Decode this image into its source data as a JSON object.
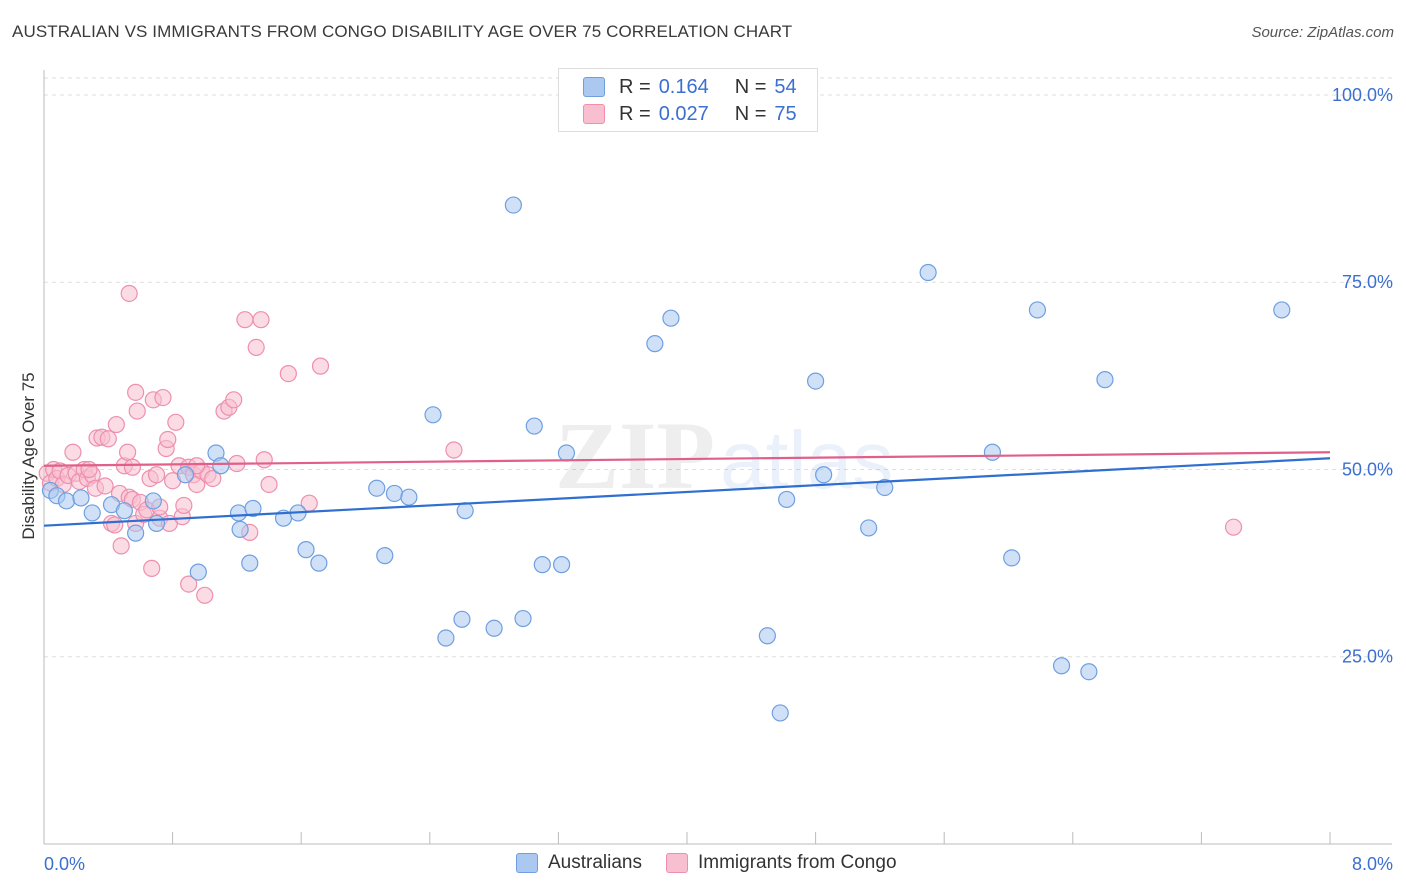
{
  "title": "AUSTRALIAN VS IMMIGRANTS FROM CONGO DISABILITY AGE OVER 75 CORRELATION CHART",
  "source": "Source: ZipAtlas.com",
  "watermark": {
    "zip": "ZIP",
    "atlas": "atlas"
  },
  "legend": {
    "r_label": "R =",
    "n_label": "N =",
    "rows": [
      {
        "r": "0.164",
        "n": "54"
      },
      {
        "r": "0.027",
        "n": "75"
      }
    ]
  },
  "bottom_legend": [
    "Australians",
    "Immigrants from Congo"
  ],
  "colors": {
    "blue_fill": "#aac8f0",
    "blue_stroke": "#6f9fe0",
    "blue_line": "#2f6fd0",
    "pink_fill": "#f8bfd0",
    "pink_stroke": "#ee8fae",
    "pink_line": "#e0608a",
    "axis_text": "#3b6fd0",
    "grid": "#dddddd"
  },
  "chart_data": {
    "type": "scatter",
    "title": "AUSTRALIAN VS IMMIGRANTS FROM CONGO DISABILITY AGE OVER 75 CORRELATION CHART",
    "xlabel": "",
    "ylabel": "Disability Age Over 75",
    "xlim": [
      0,
      8
    ],
    "ylim": [
      0,
      102
    ],
    "x_tick_labels": [
      "0.0%",
      "8.0%"
    ],
    "y_ticks": [
      25,
      50,
      75,
      100
    ],
    "y_tick_labels": [
      "25.0%",
      "50.0%",
      "75.0%",
      "100.0%"
    ],
    "grid": true,
    "series": [
      {
        "name": "Australians",
        "color": "blue",
        "trend": {
          "x": [
            0,
            8
          ],
          "y": [
            42.5,
            51.5
          ]
        },
        "points": [
          {
            "x": 0.04,
            "y": 47.2
          },
          {
            "x": 0.08,
            "y": 46.5
          },
          {
            "x": 0.14,
            "y": 45.8
          },
          {
            "x": 0.23,
            "y": 46.2
          },
          {
            "x": 0.3,
            "y": 44.2
          },
          {
            "x": 0.42,
            "y": 45.3
          },
          {
            "x": 0.5,
            "y": 44.5
          },
          {
            "x": 0.68,
            "y": 45.8
          },
          {
            "x": 0.7,
            "y": 42.8
          },
          {
            "x": 0.57,
            "y": 41.5
          },
          {
            "x": 0.88,
            "y": 49.3
          },
          {
            "x": 1.07,
            "y": 52.2
          },
          {
            "x": 1.1,
            "y": 50.5
          },
          {
            "x": 1.21,
            "y": 44.2
          },
          {
            "x": 1.3,
            "y": 44.8
          },
          {
            "x": 1.22,
            "y": 42.0
          },
          {
            "x": 1.49,
            "y": 43.5
          },
          {
            "x": 1.58,
            "y": 44.2
          },
          {
            "x": 1.28,
            "y": 37.5
          },
          {
            "x": 1.63,
            "y": 39.3
          },
          {
            "x": 1.71,
            "y": 37.5
          },
          {
            "x": 2.07,
            "y": 47.5
          },
          {
            "x": 2.18,
            "y": 46.8
          },
          {
            "x": 2.27,
            "y": 46.3
          },
          {
            "x": 2.12,
            "y": 38.5
          },
          {
            "x": 0.96,
            "y": 36.3
          },
          {
            "x": 2.42,
            "y": 57.3
          },
          {
            "x": 2.92,
            "y": 85.3
          },
          {
            "x": 3.05,
            "y": 55.8
          },
          {
            "x": 3.25,
            "y": 52.2
          },
          {
            "x": 3.1,
            "y": 37.3
          },
          {
            "x": 3.22,
            "y": 37.3
          },
          {
            "x": 2.62,
            "y": 44.5
          },
          {
            "x": 2.6,
            "y": 30.0
          },
          {
            "x": 2.5,
            "y": 27.5
          },
          {
            "x": 2.8,
            "y": 28.8
          },
          {
            "x": 2.98,
            "y": 30.1
          },
          {
            "x": 3.8,
            "y": 66.8
          },
          {
            "x": 3.9,
            "y": 70.2
          },
          {
            "x": 4.5,
            "y": 27.8
          },
          {
            "x": 4.58,
            "y": 17.5
          },
          {
            "x": 4.62,
            "y": 46.0
          },
          {
            "x": 4.8,
            "y": 61.8
          },
          {
            "x": 4.85,
            "y": 49.3
          },
          {
            "x": 5.13,
            "y": 42.2
          },
          {
            "x": 5.23,
            "y": 47.6
          },
          {
            "x": 5.5,
            "y": 76.3
          },
          {
            "x": 5.9,
            "y": 52.3
          },
          {
            "x": 6.02,
            "y": 38.2
          },
          {
            "x": 6.18,
            "y": 71.3
          },
          {
            "x": 6.33,
            "y": 23.8
          },
          {
            "x": 6.5,
            "y": 23.0
          },
          {
            "x": 6.6,
            "y": 62.0
          },
          {
            "x": 7.7,
            "y": 71.3
          }
        ]
      },
      {
        "name": "Immigrants from Congo",
        "color": "pink",
        "trend": {
          "x": [
            0,
            8
          ],
          "y": [
            50.5,
            52.3
          ]
        },
        "points": [
          {
            "x": 0.02,
            "y": 49.5
          },
          {
            "x": 0.04,
            "y": 48.2
          },
          {
            "x": 0.06,
            "y": 50.0
          },
          {
            "x": 0.08,
            "y": 48.8
          },
          {
            "x": 0.1,
            "y": 49.8
          },
          {
            "x": 0.12,
            "y": 48.0
          },
          {
            "x": 0.15,
            "y": 49.2
          },
          {
            "x": 0.18,
            "y": 52.3
          },
          {
            "x": 0.2,
            "y": 49.5
          },
          {
            "x": 0.22,
            "y": 48.4
          },
          {
            "x": 0.25,
            "y": 50.0
          },
          {
            "x": 0.27,
            "y": 48.8
          },
          {
            "x": 0.3,
            "y": 49.3
          },
          {
            "x": 0.32,
            "y": 47.5
          },
          {
            "x": 0.33,
            "y": 54.2
          },
          {
            "x": 0.36,
            "y": 54.3
          },
          {
            "x": 0.38,
            "y": 47.8
          },
          {
            "x": 0.4,
            "y": 54.1
          },
          {
            "x": 0.42,
            "y": 42.8
          },
          {
            "x": 0.44,
            "y": 42.6
          },
          {
            "x": 0.45,
            "y": 56.0
          },
          {
            "x": 0.47,
            "y": 46.8
          },
          {
            "x": 0.48,
            "y": 39.8
          },
          {
            "x": 0.5,
            "y": 50.5
          },
          {
            "x": 0.52,
            "y": 52.3
          },
          {
            "x": 0.53,
            "y": 46.3
          },
          {
            "x": 0.55,
            "y": 46.0
          },
          {
            "x": 0.57,
            "y": 42.8
          },
          {
            "x": 0.53,
            "y": 73.5
          },
          {
            "x": 0.57,
            "y": 60.3
          },
          {
            "x": 0.58,
            "y": 57.8
          },
          {
            "x": 0.6,
            "y": 45.6
          },
          {
            "x": 0.62,
            "y": 44.0
          },
          {
            "x": 0.64,
            "y": 44.6
          },
          {
            "x": 0.66,
            "y": 48.8
          },
          {
            "x": 0.68,
            "y": 59.3
          },
          {
            "x": 0.67,
            "y": 36.8
          },
          {
            "x": 0.7,
            "y": 49.3
          },
          {
            "x": 0.72,
            "y": 43.5
          },
          {
            "x": 0.74,
            "y": 59.6
          },
          {
            "x": 0.76,
            "y": 52.8
          },
          {
            "x": 0.77,
            "y": 54.0
          },
          {
            "x": 0.78,
            "y": 42.8
          },
          {
            "x": 0.8,
            "y": 48.5
          },
          {
            "x": 0.82,
            "y": 56.3
          },
          {
            "x": 0.84,
            "y": 50.5
          },
          {
            "x": 0.86,
            "y": 43.7
          },
          {
            "x": 0.87,
            "y": 45.2
          },
          {
            "x": 0.9,
            "y": 50.3
          },
          {
            "x": 0.9,
            "y": 34.7
          },
          {
            "x": 0.93,
            "y": 49.3
          },
          {
            "x": 0.95,
            "y": 48.0
          },
          {
            "x": 0.98,
            "y": 49.8
          },
          {
            "x": 1.0,
            "y": 33.2
          },
          {
            "x": 1.02,
            "y": 49.3
          },
          {
            "x": 1.05,
            "y": 48.8
          },
          {
            "x": 1.12,
            "y": 57.8
          },
          {
            "x": 1.15,
            "y": 58.3
          },
          {
            "x": 1.18,
            "y": 59.3
          },
          {
            "x": 1.2,
            "y": 50.8
          },
          {
            "x": 1.25,
            "y": 70.0
          },
          {
            "x": 1.28,
            "y": 41.6
          },
          {
            "x": 1.32,
            "y": 66.3
          },
          {
            "x": 1.35,
            "y": 70.0
          },
          {
            "x": 1.37,
            "y": 51.3
          },
          {
            "x": 1.4,
            "y": 48.0
          },
          {
            "x": 1.52,
            "y": 62.8
          },
          {
            "x": 1.65,
            "y": 45.5
          },
          {
            "x": 1.72,
            "y": 63.8
          },
          {
            "x": 0.55,
            "y": 50.3
          },
          {
            "x": 0.72,
            "y": 45.0
          },
          {
            "x": 0.95,
            "y": 50.5
          },
          {
            "x": 0.28,
            "y": 50.0
          },
          {
            "x": 2.55,
            "y": 52.6
          },
          {
            "x": 7.4,
            "y": 42.3
          }
        ]
      }
    ]
  }
}
